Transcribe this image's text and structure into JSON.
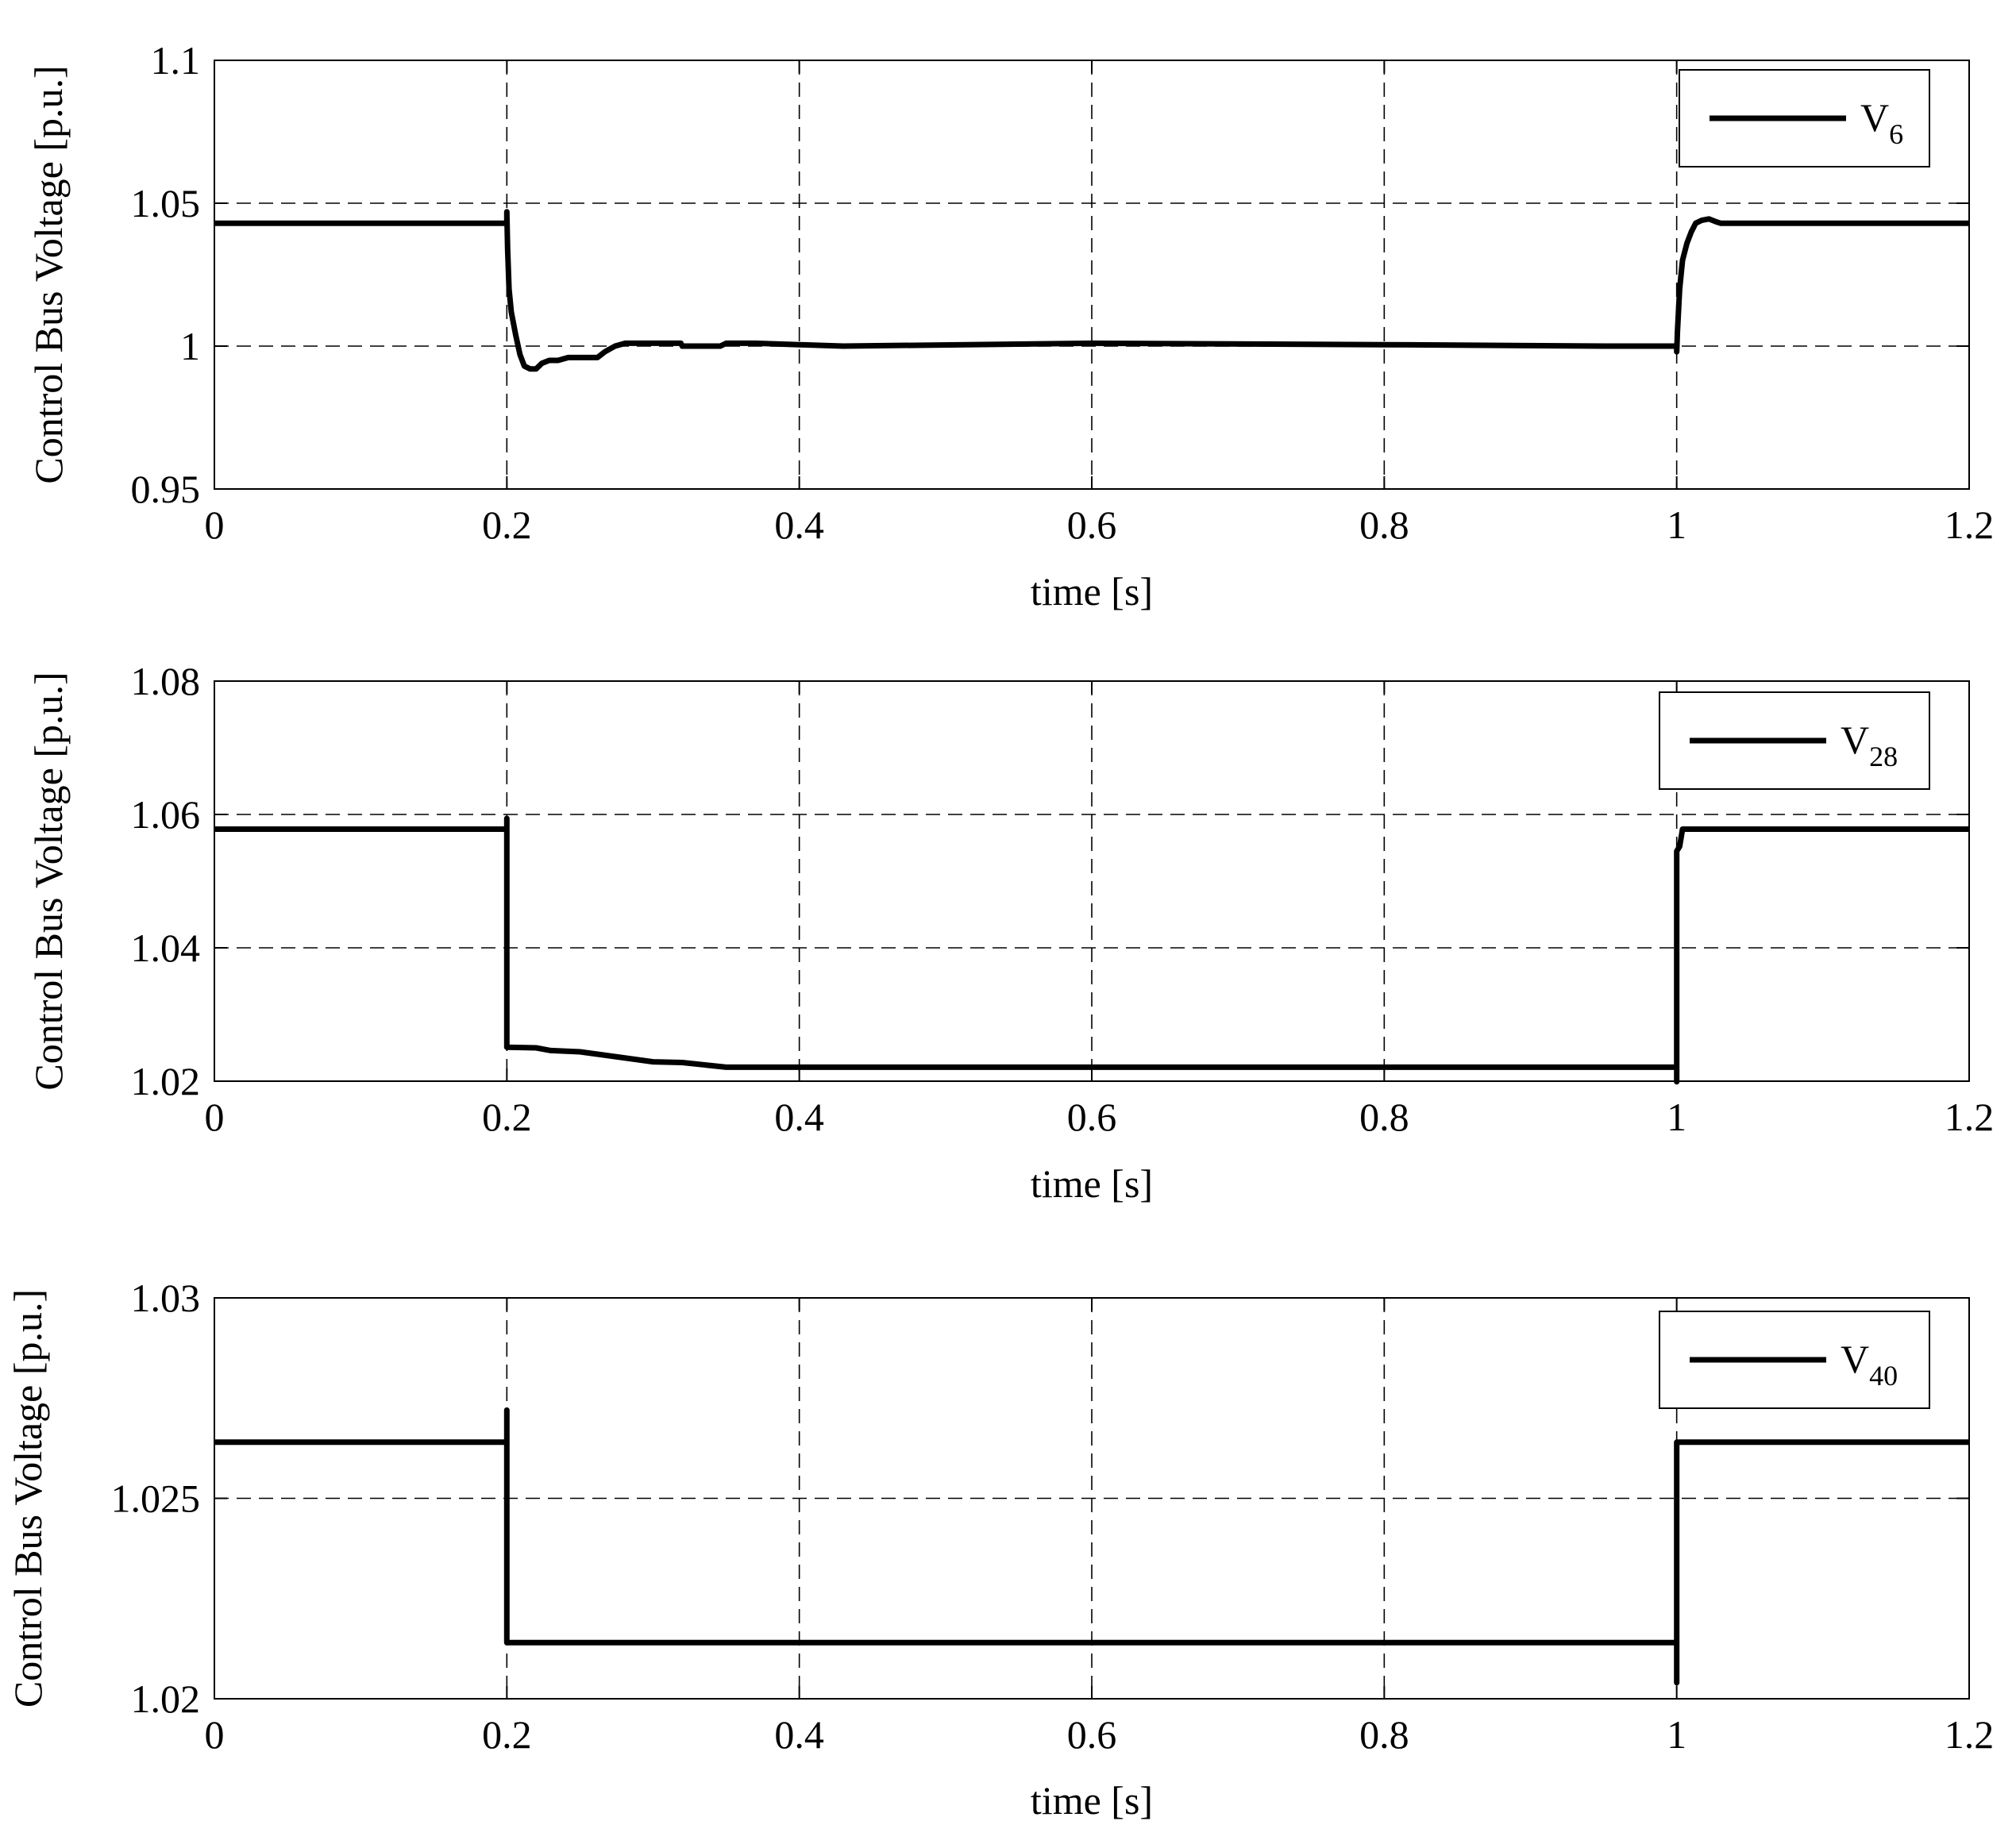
{
  "chart_data": [
    {
      "type": "line",
      "title": "",
      "xlabel": "time [s]",
      "ylabel": "Control Bus Voltage [p.u.]",
      "xlim": [
        0,
        1.2
      ],
      "ylim": [
        0.95,
        1.1
      ],
      "xticks": [
        0,
        0.2,
        0.4,
        0.6,
        0.8,
        1,
        1.2
      ],
      "xtick_labels": [
        "0",
        "0.2",
        "0.4",
        "0.6",
        "0.8",
        "1",
        "1.2"
      ],
      "yticks": [
        0.95,
        1,
        1.05,
        1.1
      ],
      "ytick_labels": [
        "0.95",
        "1",
        "1.05",
        "1.1"
      ],
      "grid": true,
      "legend_position": "top-right",
      "series": [
        {
          "name": "V6",
          "legend_main": "V",
          "legend_sub": "6",
          "color": "#000000",
          "x": [
            0,
            0.2,
            0.2,
            0.2005,
            0.2015,
            0.203,
            0.206,
            0.209,
            0.212,
            0.216,
            0.22,
            0.224,
            0.229,
            0.235,
            0.242,
            0.252,
            0.262,
            0.267,
            0.274,
            0.281,
            0.3,
            0.319,
            0.32,
            0.346,
            0.35,
            0.37,
            0.4,
            0.43,
            0.6,
            0.8,
            0.95,
            1,
            1,
            1.0005,
            1.002,
            1.004,
            1.007,
            1.01,
            1.013,
            1.017,
            1.022,
            1.027,
            1.03,
            1.2
          ],
          "values": [
            1.043,
            1.043,
            1.047,
            1.034,
            1.02,
            1.012,
            1.004,
            0.997,
            0.993,
            0.992,
            0.992,
            0.994,
            0.995,
            0.995,
            0.996,
            0.996,
            0.996,
            0.998,
            1.0,
            1.001,
            1.001,
            1.001,
            1.0,
            1.0,
            1.001,
            1.001,
            1.0005,
            1.0,
            1.001,
            1.0005,
            1.0,
            1.0,
            0.998,
            1.005,
            1.02,
            1.03,
            1.036,
            1.04,
            1.043,
            1.044,
            1.0445,
            1.0435,
            1.043,
            1.043
          ]
        }
      ]
    },
    {
      "type": "line",
      "title": "",
      "xlabel": "time [s]",
      "ylabel": "Control Bus Voltage [p.u.]",
      "xlim": [
        0,
        1.2
      ],
      "ylim": [
        1.02,
        1.08
      ],
      "xticks": [
        0,
        0.2,
        0.4,
        0.6,
        0.8,
        1,
        1.2
      ],
      "xtick_labels": [
        "0",
        "0.2",
        "0.4",
        "0.6",
        "0.8",
        "1",
        "1.2"
      ],
      "yticks": [
        1.02,
        1.04,
        1.06,
        1.08
      ],
      "ytick_labels": [
        "1.02",
        "1.04",
        "1.06",
        "1.08"
      ],
      "grid": true,
      "legend_position": "top-right",
      "series": [
        {
          "name": "V28",
          "legend_main": "V",
          "legend_sub": "28",
          "color": "#000000",
          "x": [
            0,
            0.2,
            0.2,
            0.2,
            0.22,
            0.23,
            0.25,
            0.3,
            0.32,
            0.35,
            0.4,
            0.6,
            0.8,
            1.0,
            1.0,
            1.0,
            1.002,
            1.004,
            1.2
          ],
          "values": [
            1.0578,
            1.0578,
            1.0594,
            1.0251,
            1.025,
            1.0246,
            1.0244,
            1.0229,
            1.0228,
            1.0221,
            1.0221,
            1.0221,
            1.0221,
            1.0221,
            1.0199,
            1.0545,
            1.0552,
            1.0578,
            1.0578
          ]
        }
      ]
    },
    {
      "type": "line",
      "title": "",
      "xlabel": "time [s]",
      "ylabel": "Control Bus Voltage [p.u.]",
      "xlim": [
        0,
        1.2
      ],
      "ylim": [
        1.02,
        1.03
      ],
      "xticks": [
        0,
        0.2,
        0.4,
        0.6,
        0.8,
        1,
        1.2
      ],
      "xtick_labels": [
        "0",
        "0.2",
        "0.4",
        "0.6",
        "0.8",
        "1",
        "1.2"
      ],
      "yticks": [
        1.02,
        1.025,
        1.03
      ],
      "ytick_labels": [
        "1.02",
        "1.025",
        "1.03"
      ],
      "grid": true,
      "legend_position": "top-right",
      "series": [
        {
          "name": "V40",
          "legend_main": "V",
          "legend_sub": "40",
          "color": "#000000",
          "x": [
            0,
            0.2,
            0.2,
            0.2,
            0.6,
            1.0,
            1.0,
            1.0,
            1.2
          ],
          "values": [
            1.0264,
            1.0264,
            1.0272,
            1.0214,
            1.0214,
            1.0214,
            1.0204,
            1.0264,
            1.0264
          ]
        }
      ]
    }
  ]
}
